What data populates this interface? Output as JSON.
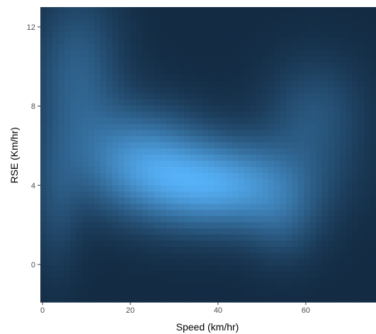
{
  "chart_data": {
    "type": "heatmap",
    "title": "",
    "xlabel": "Speed (km/hr)",
    "ylabel": "RSE (Km/hr)",
    "xlim": [
      -0.5,
      76
    ],
    "ylim": [
      -1.9,
      13.0
    ],
    "x_ticks": [
      0,
      20,
      40,
      60
    ],
    "y_ticks": [
      0,
      4,
      8,
      12
    ],
    "grid": false,
    "legend": "none",
    "colors": {
      "low": "#132B43",
      "high": "#56B1F7"
    },
    "density_components": [
      {
        "x_center": 40,
        "y_center": 4.0,
        "x_spread": 14,
        "y_spread": 1.6,
        "weight": 1.0
      },
      {
        "x_center": 22,
        "y_center": 5.5,
        "x_spread": 10,
        "y_spread": 1.8,
        "weight": 0.65
      },
      {
        "x_center": 8,
        "y_center": 9.5,
        "x_spread": 7,
        "y_spread": 3.0,
        "weight": 0.45
      },
      {
        "x_center": 3,
        "y_center": 3.0,
        "x_spread": 4,
        "y_spread": 2.5,
        "weight": 0.25
      },
      {
        "x_center": 62,
        "y_center": 7.5,
        "x_spread": 8,
        "y_spread": 2.0,
        "weight": 0.35
      },
      {
        "x_center": 55,
        "y_center": 2.0,
        "x_spread": 6,
        "y_spread": 1.5,
        "weight": 0.25
      }
    ]
  }
}
